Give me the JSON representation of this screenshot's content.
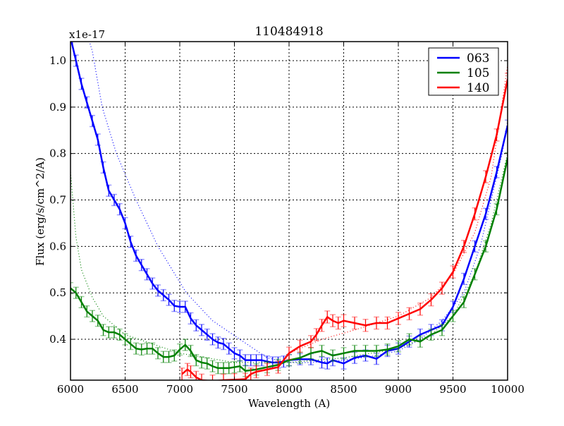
{
  "chart_data": {
    "type": "line",
    "title": "110484918",
    "xlabel": "Wavelength (A)",
    "ylabel": "Flux (erg/s/cm^2/A)",
    "y_offset_label": "x1e-17",
    "xlim": [
      6000,
      10000
    ],
    "ylim": [
      0.312,
      1.041
    ],
    "xticks": [
      6000,
      6500,
      7000,
      7500,
      8000,
      8500,
      9000,
      9500,
      10000
    ],
    "yticks": [
      0.4,
      0.5,
      0.6,
      0.7,
      0.8,
      0.9,
      1.0
    ],
    "ytick_labels": [
      "0.4",
      "0.5",
      "0.6",
      "0.7",
      "0.8",
      "0.9",
      "1.0"
    ],
    "grid": true,
    "legend_position": "top-right",
    "series": [
      {
        "name": "063",
        "color": "#0000ff",
        "error": 0.012,
        "x": [
          6000,
          6050,
          6100,
          6150,
          6200,
          6250,
          6300,
          6350,
          6400,
          6450,
          6500,
          6550,
          6600,
          6650,
          6700,
          6750,
          6800,
          6850,
          6900,
          6950,
          7000,
          7050,
          7100,
          7150,
          7200,
          7250,
          7300,
          7350,
          7400,
          7450,
          7500,
          7550,
          7600,
          7650,
          7700,
          7750,
          7800,
          7850,
          7900,
          7950,
          8000,
          8100,
          8200,
          8300,
          8350,
          8400,
          8500,
          8600,
          8700,
          8800,
          8900,
          9000,
          9100,
          9200,
          9300,
          9400,
          9500,
          9600,
          9700,
          9800,
          9900,
          10000
        ],
        "y": [
          1.05,
          1.0,
          0.95,
          0.91,
          0.87,
          0.83,
          0.77,
          0.72,
          0.7,
          0.68,
          0.65,
          0.61,
          0.58,
          0.56,
          0.54,
          0.52,
          0.505,
          0.495,
          0.485,
          0.472,
          0.47,
          0.47,
          0.445,
          0.43,
          0.42,
          0.41,
          0.4,
          0.393,
          0.39,
          0.38,
          0.37,
          0.365,
          0.355,
          0.355,
          0.355,
          0.355,
          0.352,
          0.35,
          0.35,
          0.352,
          0.355,
          0.357,
          0.357,
          0.35,
          0.348,
          0.355,
          0.348,
          0.36,
          0.365,
          0.358,
          0.375,
          0.38,
          0.395,
          0.41,
          0.42,
          0.43,
          0.47,
          0.53,
          0.6,
          0.67,
          0.76,
          0.86
        ],
        "fit_x": [
          6150,
          6200,
          6290,
          6420,
          6600,
          6800,
          7060,
          7300,
          7550,
          7800,
          8000,
          8200,
          8500,
          8800,
          9000,
          9200,
          9400,
          9600,
          9750,
          9850,
          9950,
          10000
        ],
        "fit_y": [
          1.06,
          1.02,
          0.9,
          0.8,
          0.7,
          0.6,
          0.5,
          0.44,
          0.4,
          0.36,
          0.35,
          0.35,
          0.355,
          0.365,
          0.375,
          0.4,
          0.44,
          0.5,
          0.6,
          0.7,
          0.8,
          0.87
        ]
      },
      {
        "name": "105",
        "color": "#008000",
        "error": 0.012,
        "x": [
          6000,
          6050,
          6100,
          6150,
          6200,
          6250,
          6300,
          6350,
          6400,
          6450,
          6500,
          6550,
          6600,
          6650,
          6700,
          6750,
          6800,
          6850,
          6900,
          6950,
          7000,
          7050,
          7100,
          7150,
          7200,
          7250,
          7300,
          7350,
          7400,
          7450,
          7500,
          7550,
          7600,
          7700,
          7800,
          7900,
          8000,
          8100,
          8200,
          8300,
          8400,
          8500,
          8600,
          8700,
          8800,
          8900,
          9000,
          9100,
          9200,
          9300,
          9400,
          9500,
          9600,
          9700,
          9800,
          9900,
          10000
        ],
        "y": [
          0.51,
          0.5,
          0.48,
          0.46,
          0.45,
          0.44,
          0.42,
          0.415,
          0.415,
          0.41,
          0.4,
          0.39,
          0.38,
          0.378,
          0.38,
          0.38,
          0.37,
          0.362,
          0.362,
          0.365,
          0.378,
          0.388,
          0.375,
          0.355,
          0.35,
          0.348,
          0.342,
          0.338,
          0.338,
          0.338,
          0.34,
          0.342,
          0.332,
          0.335,
          0.34,
          0.345,
          0.355,
          0.36,
          0.37,
          0.375,
          0.365,
          0.37,
          0.375,
          0.375,
          0.375,
          0.378,
          0.385,
          0.4,
          0.395,
          0.41,
          0.42,
          0.45,
          0.48,
          0.54,
          0.6,
          0.68,
          0.79
        ],
        "fit_x": [
          6000,
          6050,
          6100,
          6200,
          6300,
          6500,
          7000,
          7500,
          8000,
          8500,
          9000,
          9300,
          9500,
          9700,
          9850,
          10000
        ],
        "fit_y": [
          0.76,
          0.62,
          0.55,
          0.49,
          0.45,
          0.41,
          0.37,
          0.35,
          0.35,
          0.36,
          0.38,
          0.41,
          0.45,
          0.54,
          0.65,
          0.8
        ]
      },
      {
        "name": "140",
        "color": "#ff0000",
        "error": 0.013,
        "x": [
          7020,
          7070,
          7100,
          7150,
          7200,
          7300,
          7400,
          7500,
          7600,
          7650,
          7700,
          7800,
          7900,
          8000,
          8100,
          8200,
          8250,
          8300,
          8350,
          8400,
          8450,
          8500,
          8600,
          8700,
          8800,
          8900,
          9000,
          9100,
          9200,
          9300,
          9400,
          9500,
          9600,
          9700,
          9800,
          9900,
          10000
        ],
        "y": [
          0.325,
          0.335,
          0.33,
          0.318,
          0.312,
          0.31,
          0.312,
          0.313,
          0.314,
          0.325,
          0.33,
          0.335,
          0.34,
          0.37,
          0.385,
          0.395,
          0.41,
          0.43,
          0.448,
          0.44,
          0.435,
          0.44,
          0.435,
          0.43,
          0.435,
          0.435,
          0.445,
          0.455,
          0.465,
          0.485,
          0.51,
          0.545,
          0.6,
          0.67,
          0.75,
          0.84,
          0.96
        ],
        "fit_x": [
          8000,
          8300,
          8600,
          9000,
          9300,
          9500,
          9700,
          9850,
          10000
        ],
        "fit_y": [
          0.37,
          0.4,
          0.42,
          0.45,
          0.49,
          0.54,
          0.63,
          0.75,
          0.99
        ]
      }
    ]
  }
}
